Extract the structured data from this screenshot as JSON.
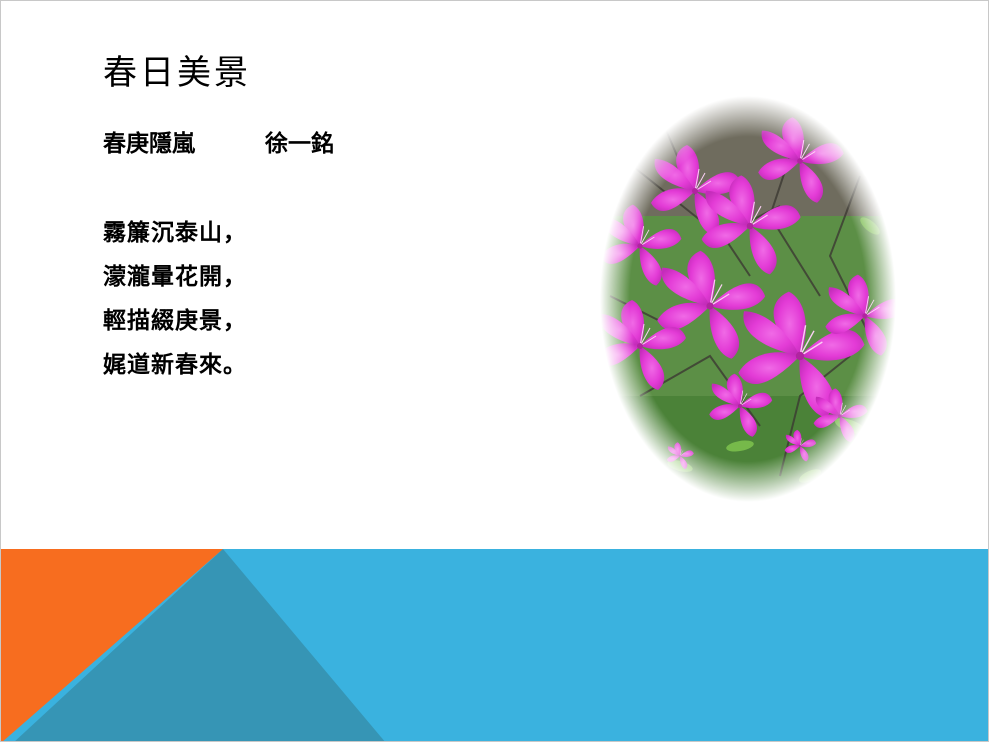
{
  "slide": {
    "title": "春日美景",
    "byline": {
      "poem_title": "春庚隱嵐",
      "author": "徐一銘"
    },
    "poem_lines": [
      "霧簾沉泰山，",
      "濛瀧暈花開，",
      "輕描綴庚景，",
      "娓道新春來。"
    ]
  },
  "colors": {
    "banner_blue": "#3ab2df",
    "banner_orange": "#f76d1f",
    "banner_teal": "#3695b5",
    "flower_magenta": "#e33bd6",
    "leaf_green": "#4f8a3c"
  },
  "image": {
    "subject": "magenta-azalea-flowers-icon"
  }
}
